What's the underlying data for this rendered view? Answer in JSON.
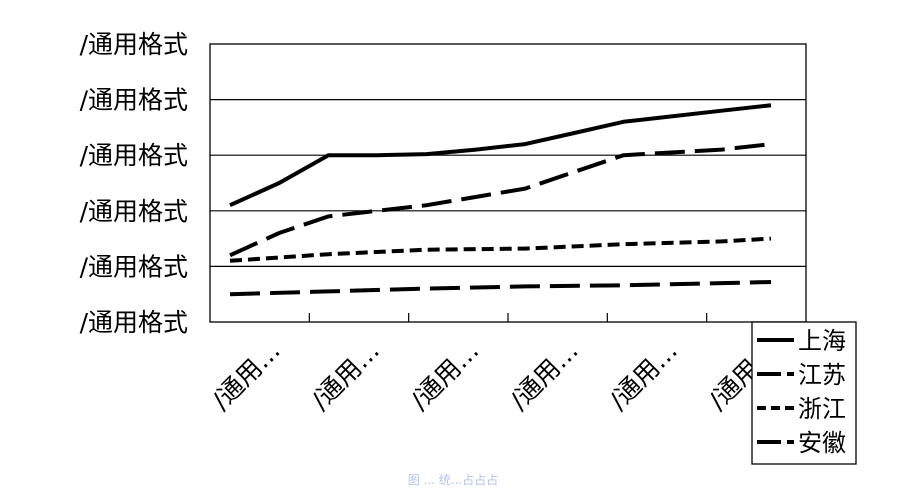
{
  "chart_data": {
    "type": "line",
    "y_tick_labels": [
      "/通用格式",
      "/通用格式",
      "/通用格式",
      "/通用格式",
      "/通用格式",
      "/通用格式"
    ],
    "x_tick_labels": [
      "/通用…",
      "/通用…",
      "/通用…",
      "/通用…",
      "/通用…",
      "/通用…"
    ],
    "ylim": [
      0,
      5
    ],
    "grid": true,
    "legend_position": "bottom-right",
    "x": [
      0,
      0.5,
      1,
      1.5,
      2,
      2.5,
      3,
      3.5,
      4,
      4.5,
      5,
      5.5
    ],
    "series": [
      {
        "name": "上海",
        "line_style": "solid",
        "points": [
          [
            0,
            2.1
          ],
          [
            0.5,
            2.5
          ],
          [
            1,
            3.0
          ],
          [
            1.5,
            3.0
          ],
          [
            2,
            3.02
          ],
          [
            2.5,
            3.1
          ],
          [
            3,
            3.2
          ],
          [
            3.5,
            3.4
          ],
          [
            4,
            3.6
          ],
          [
            4.5,
            3.7
          ],
          [
            5,
            3.8
          ],
          [
            5.5,
            3.9
          ]
        ]
      },
      {
        "name": "江苏",
        "line_style": "long-dash",
        "points": [
          [
            0,
            1.2
          ],
          [
            0.5,
            1.6
          ],
          [
            1,
            1.9
          ],
          [
            2,
            2.1
          ],
          [
            3,
            2.4
          ],
          [
            3.5,
            2.7
          ],
          [
            4,
            3.0
          ],
          [
            5,
            3.1
          ],
          [
            5.5,
            3.2
          ]
        ]
      },
      {
        "name": "浙江",
        "line_style": "short-dash",
        "points": [
          [
            0,
            1.1
          ],
          [
            1,
            1.22
          ],
          [
            2,
            1.3
          ],
          [
            3,
            1.32
          ],
          [
            4,
            1.4
          ],
          [
            5,
            1.45
          ],
          [
            5.5,
            1.5
          ]
        ]
      },
      {
        "name": "安徽",
        "line_style": "long-dash",
        "points": [
          [
            0,
            0.5
          ],
          [
            1,
            0.55
          ],
          [
            2,
            0.6
          ],
          [
            3,
            0.64
          ],
          [
            4,
            0.66
          ],
          [
            5,
            0.7
          ],
          [
            5.5,
            0.72
          ]
        ]
      }
    ]
  },
  "caption": "图 ... 统...占占占"
}
